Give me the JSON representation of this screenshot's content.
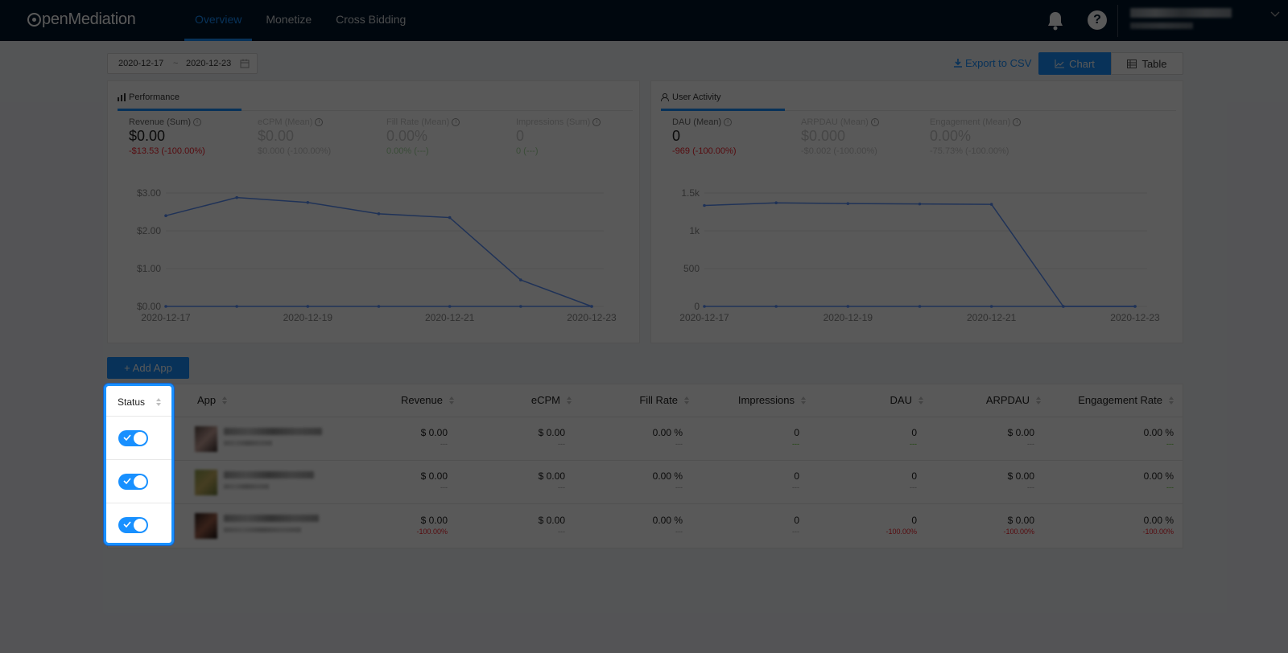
{
  "app": {
    "logo_text": "penMediation"
  },
  "nav": {
    "items": [
      {
        "label": "Overview",
        "active": true
      },
      {
        "label": "Monetize",
        "active": false
      },
      {
        "label": "Cross Bidding",
        "active": false
      }
    ],
    "help_glyph": "?"
  },
  "toolbar": {
    "date_start": "2020-12-17",
    "date_sep": "~",
    "date_end": "2020-12-23",
    "export_label": "Export to CSV",
    "chart_label": "Chart",
    "table_label": "Table",
    "view_mode": "Chart"
  },
  "performance": {
    "tab_label": "Performance",
    "metrics": [
      {
        "label": "Revenue (Sum)",
        "value": "$0.00",
        "delta": "-$13.53  (-100.00%)"
      },
      {
        "label": "eCPM (Mean)",
        "value": "$0.00",
        "delta": "$0.000  (-100.00%)"
      },
      {
        "label": "Fill Rate (Mean)",
        "value": "0.00%",
        "delta": "0.00%  (---)"
      },
      {
        "label": "Impressions (Sum)",
        "value": "0",
        "delta": "0  (---)"
      }
    ]
  },
  "user_activity": {
    "tab_label": "User Activity",
    "metrics": [
      {
        "label": "DAU (Mean)",
        "value": "0",
        "delta": "-969  (-100.00%)"
      },
      {
        "label": "ARPDAU (Mean)",
        "value": "$0.000",
        "delta": "-$0.002  (-100.00%)"
      },
      {
        "label": "Engagement (Mean)",
        "value": "0.00%",
        "delta": "-75.73%  (-100.00%)"
      }
    ]
  },
  "chart_data": [
    {
      "type": "line",
      "x": [
        "2020-12-17",
        "2020-12-18",
        "2020-12-19",
        "2020-12-20",
        "2020-12-21",
        "2020-12-22",
        "2020-12-23"
      ],
      "x_tick_labels": [
        "2020-12-17",
        "2020-12-19",
        "2020-12-21",
        "2020-12-23"
      ],
      "y_tick_labels": [
        "$0.00",
        "$1.00",
        "$2.00",
        "$3.00"
      ],
      "ylim": [
        0,
        3
      ],
      "series": [
        {
          "values": [
            2.4,
            2.88,
            2.75,
            2.45,
            2.35,
            0.7,
            0.0
          ],
          "color": "#5b8ff9"
        },
        {
          "values": [
            0,
            0,
            0,
            0,
            0,
            0,
            0
          ],
          "color": "#5b8ff9"
        }
      ],
      "grid": true
    },
    {
      "type": "line",
      "x": [
        "2020-12-17",
        "2020-12-18",
        "2020-12-19",
        "2020-12-20",
        "2020-12-21",
        "2020-12-22",
        "2020-12-23"
      ],
      "x_tick_labels": [
        "2020-12-17",
        "2020-12-19",
        "2020-12-21",
        "2020-12-23"
      ],
      "y_tick_labels": [
        "0",
        "500",
        "1k",
        "1.5k"
      ],
      "ylim": [
        0,
        1500
      ],
      "series": [
        {
          "values": [
            1335,
            1370,
            1360,
            1355,
            1350,
            0,
            0
          ],
          "color": "#5b8ff9"
        },
        {
          "values": [
            0,
            0,
            0,
            0,
            0,
            0,
            0
          ],
          "color": "#5b8ff9"
        }
      ],
      "grid": true
    }
  ],
  "add_app_label": "+ Add App",
  "table": {
    "headers": {
      "status": "Status",
      "app": "App",
      "revenue": "Revenue",
      "ecpm": "eCPM",
      "fill_rate": "Fill Rate",
      "impressions": "Impressions",
      "dau": "DAU",
      "arpdau": "ARPDAU",
      "engagement": "Engagement Rate"
    },
    "rows": [
      {
        "enabled": true,
        "revenue": "$ 0.00",
        "revenue_d": "---",
        "ecpm": "$ 0.00",
        "ecpm_d": "---",
        "fill": "0.00 %",
        "fill_d": "---",
        "imp": "0",
        "imp_d": "---",
        "dau": "0",
        "dau_d": "---",
        "arpdau": "$ 0.00",
        "arpdau_d": "---",
        "eng": "0.00 %",
        "eng_d": "---"
      },
      {
        "enabled": true,
        "revenue": "$ 0.00",
        "revenue_d": "---",
        "ecpm": "$ 0.00",
        "ecpm_d": "---",
        "fill": "0.00 %",
        "fill_d": "---",
        "imp": "0",
        "imp_d": "---",
        "dau": "0",
        "dau_d": "---",
        "arpdau": "$ 0.00",
        "arpdau_d": "---",
        "eng": "0.00 %",
        "eng_d": "---"
      },
      {
        "enabled": true,
        "revenue": "$ 0.00",
        "revenue_d": "-100.00%",
        "ecpm": "$ 0.00",
        "ecpm_d": "---",
        "fill": "0.00 %",
        "fill_d": "---",
        "imp": "0",
        "imp_d": "---",
        "dau": "0",
        "dau_d": "-100.00%",
        "arpdau": "$ 0.00",
        "arpdau_d": "-100.00%",
        "eng": "0.00 %",
        "eng_d": "-100.00%"
      }
    ]
  },
  "colors": {
    "accent": "#1890ff",
    "nav_bg": "#001529",
    "negative": "#f5222d",
    "positive": "#52c41a"
  }
}
